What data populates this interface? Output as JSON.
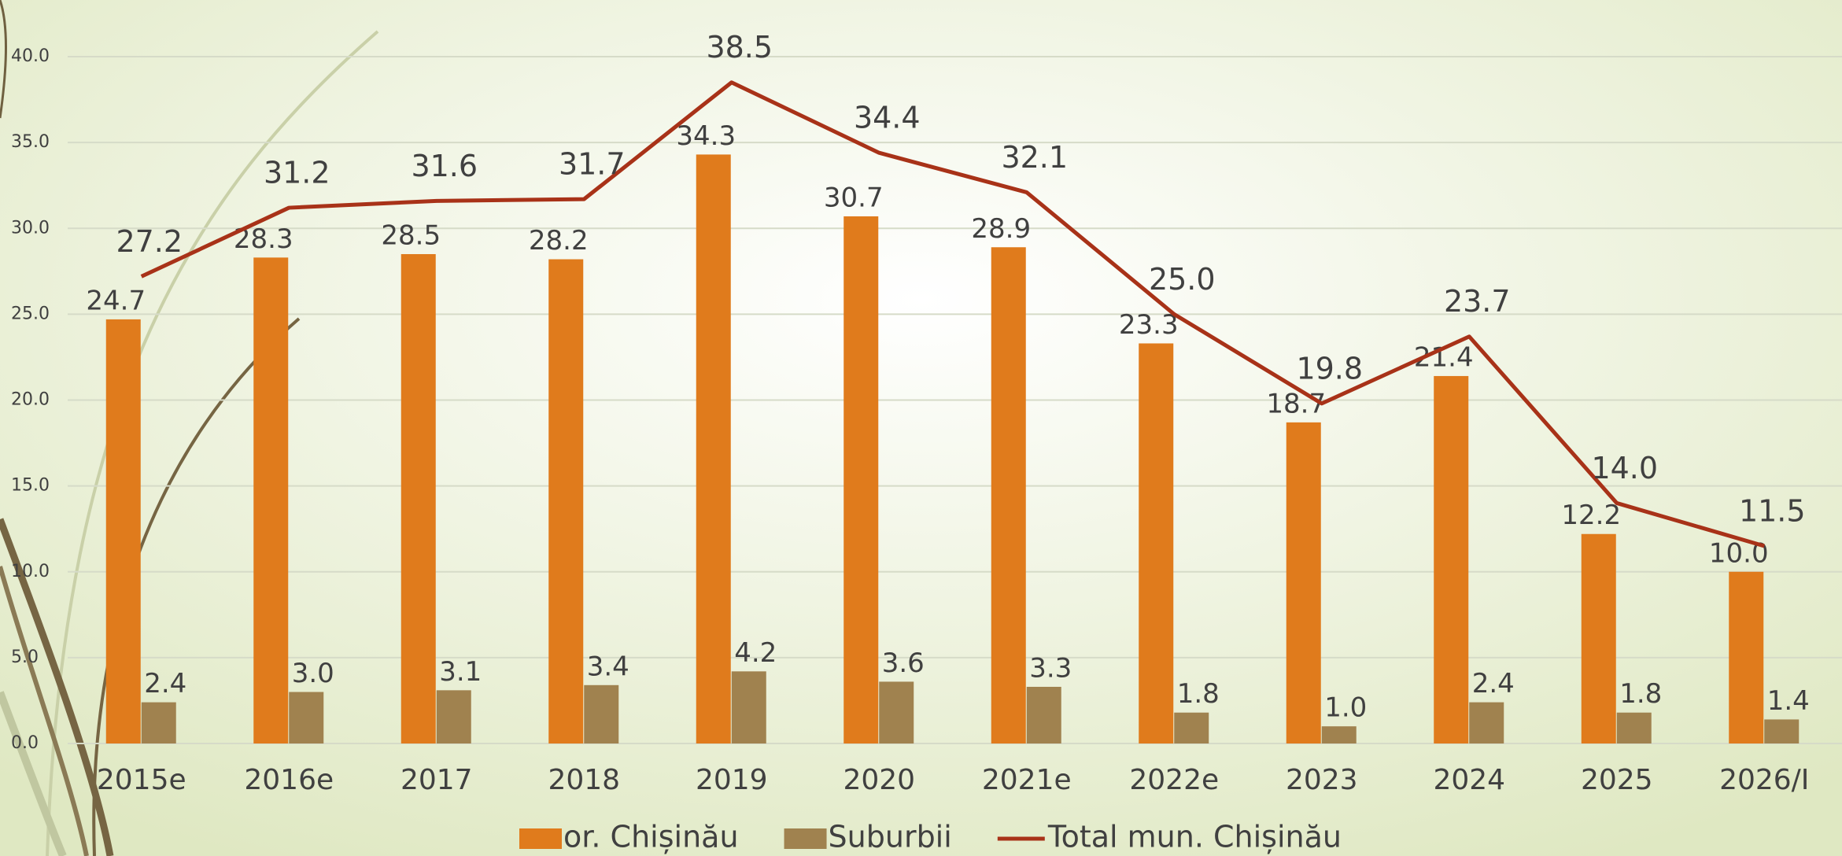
{
  "chart_data": {
    "type": "bar",
    "categories": [
      "2015e",
      "2016e",
      "2017",
      "2018",
      "2019",
      "2020",
      "2021e",
      "2022e",
      "2023",
      "2024",
      "2025",
      "2026/I"
    ],
    "series": [
      {
        "name": "or. Chișinău",
        "color": "#e07b1c",
        "type": "bar",
        "values": [
          24.7,
          28.3,
          28.5,
          28.2,
          34.3,
          30.7,
          28.9,
          23.3,
          18.7,
          21.4,
          12.2,
          10.0
        ],
        "value_labels": [
          "24.7",
          "28.3",
          "28.5",
          "28.2",
          "34.3",
          "30.7",
          "28.9",
          "23.3",
          "18.7",
          "21.4",
          "12.2",
          "10.0"
        ]
      },
      {
        "name": "Suburbii",
        "color": "#a0824f",
        "type": "bar",
        "values": [
          2.4,
          3.0,
          3.1,
          3.4,
          4.2,
          3.6,
          3.3,
          1.8,
          1.0,
          2.4,
          1.8,
          1.4
        ],
        "value_labels": [
          "2.4",
          "3.0",
          "3.1",
          "3.4",
          "4.2",
          "3.6",
          "3.3",
          "1.8",
          "1.0",
          "2.4",
          "1.8",
          "1.4"
        ]
      },
      {
        "name": "Total mun. Chișinău",
        "color": "#a83218",
        "type": "line",
        "values": [
          27.2,
          31.2,
          31.6,
          31.7,
          38.5,
          34.4,
          32.1,
          25.0,
          19.8,
          23.7,
          14.0,
          11.5
        ],
        "value_labels": [
          "27.2",
          "31.2",
          "31.6",
          "31.7",
          "38.5",
          "34.4",
          "32.1",
          "25.0",
          "19.8",
          "23.7",
          "14.0",
          "11.5"
        ]
      }
    ],
    "ylim": [
      0,
      40
    ],
    "yticks": [
      {
        "value": 0,
        "label": "0.0"
      },
      {
        "value": 5,
        "label": "5.0"
      },
      {
        "value": 10,
        "label": "10.0"
      },
      {
        "value": 15,
        "label": "15.0"
      },
      {
        "value": 20,
        "label": "20.0"
      },
      {
        "value": 25,
        "label": "25.0"
      },
      {
        "value": 30,
        "label": "30.0"
      },
      {
        "value": 35,
        "label": "35.0"
      },
      {
        "value": 40,
        "label": "40.0"
      }
    ],
    "grid": true,
    "legend": "bottom"
  }
}
